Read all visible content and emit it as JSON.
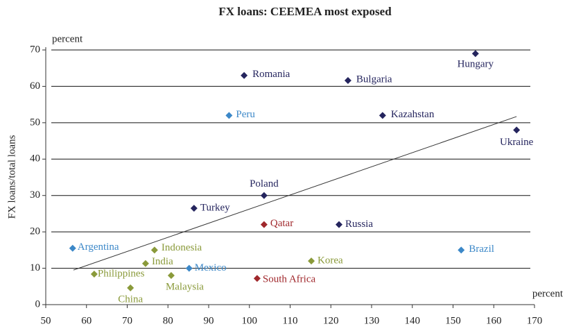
{
  "chart_data": {
    "type": "scatter",
    "title": "FX loans: CEEMEA most exposed",
    "y_label": "FX loans/total loans",
    "y_unit": "percent",
    "x_unit": "percent",
    "xlim": [
      50,
      170
    ],
    "xticks": [
      50,
      60,
      70,
      80,
      90,
      100,
      110,
      120,
      130,
      140,
      150,
      160,
      170
    ],
    "ylim": [
      0,
      70
    ],
    "yticks": [
      0,
      10,
      20,
      30,
      40,
      50,
      60,
      70
    ],
    "grid": true,
    "points": [
      {
        "label": "Hungary",
        "x": 155.5,
        "y": 69,
        "color": "#25255e"
      },
      {
        "label": "Romania",
        "x": 98.7,
        "y": 63,
        "color": "#25255e"
      },
      {
        "label": "Bulgaria",
        "x": 124.2,
        "y": 61.6,
        "color": "#25255e"
      },
      {
        "label": "Peru",
        "x": 95,
        "y": 52,
        "color": "#3c88c8"
      },
      {
        "label": "Kazahstan",
        "x": 132.7,
        "y": 52,
        "color": "#25255e"
      },
      {
        "label": "Ukraine",
        "x": 165.6,
        "y": 48,
        "color": "#25255e"
      },
      {
        "label": "Poland",
        "x": 103.6,
        "y": 30,
        "color": "#25255e"
      },
      {
        "label": "Turkey",
        "x": 86.4,
        "y": 26.5,
        "color": "#25255e"
      },
      {
        "label": "Qatar",
        "x": 103.6,
        "y": 22,
        "color": "#a0282c"
      },
      {
        "label": "Russia",
        "x": 122,
        "y": 22,
        "color": "#25255e"
      },
      {
        "label": "Argentina",
        "x": 56.6,
        "y": 15.5,
        "color": "#3c88c8"
      },
      {
        "label": "Brazil",
        "x": 152,
        "y": 15,
        "color": "#3c88c8"
      },
      {
        "label": "Indonesia",
        "x": 76.7,
        "y": 15,
        "color": "#8a9a3a"
      },
      {
        "label": "India",
        "x": 74.5,
        "y": 11.3,
        "color": "#8a9a3a"
      },
      {
        "label": "Mexico",
        "x": 85.2,
        "y": 10,
        "color": "#3c88c8"
      },
      {
        "label": "Korea",
        "x": 115.2,
        "y": 12,
        "color": "#8a9a3a"
      },
      {
        "label": "Philippines",
        "x": 61.9,
        "y": 8.4,
        "color": "#8a9a3a"
      },
      {
        "label": "Malaysia",
        "x": 80.8,
        "y": 8,
        "color": "#8a9a3a"
      },
      {
        "label": "China",
        "x": 70.8,
        "y": 4.6,
        "color": "#8a9a3a"
      },
      {
        "label": "South Africa",
        "x": 101.9,
        "y": 7.2,
        "color": "#a0282c"
      }
    ],
    "trendline": {
      "x": [
        56.8,
        165.6
      ],
      "y": [
        9.5,
        51.7
      ],
      "color": "#333333"
    }
  }
}
